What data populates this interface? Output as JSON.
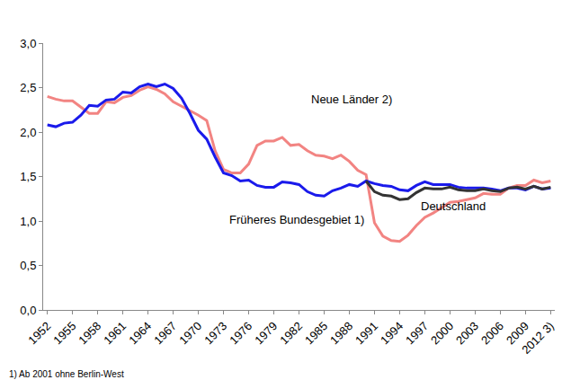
{
  "chart_data": {
    "type": "line",
    "categories": [
      "1952",
      null,
      null,
      "1955",
      null,
      null,
      "1958",
      null,
      null,
      "1961",
      null,
      null,
      "1964",
      null,
      null,
      "1967",
      null,
      null,
      "1970",
      null,
      null,
      "1973",
      null,
      null,
      "1976",
      null,
      null,
      "1979",
      null,
      null,
      "1982",
      null,
      null,
      "1985",
      null,
      null,
      "1988",
      null,
      null,
      "1991",
      null,
      null,
      "1994",
      null,
      null,
      "1997",
      null,
      null,
      "2000",
      null,
      null,
      "2003",
      null,
      null,
      "2006",
      null,
      null,
      "2009",
      null,
      null,
      "2012 3)"
    ],
    "series": [
      {
        "name": "Neue Länder 2)",
        "color": "#f28482",
        "values": [
          2.4,
          2.37,
          2.35,
          2.35,
          2.28,
          2.21,
          2.21,
          2.34,
          2.33,
          2.39,
          2.41,
          2.47,
          2.51,
          2.48,
          2.43,
          2.34,
          2.29,
          2.24,
          2.19,
          2.13,
          1.79,
          1.58,
          1.54,
          1.54,
          1.64,
          1.85,
          1.9,
          1.9,
          1.94,
          1.85,
          1.86,
          1.79,
          1.74,
          1.73,
          1.7,
          1.74,
          1.67,
          1.57,
          1.52,
          0.98,
          0.83,
          0.78,
          0.77,
          0.84,
          0.95,
          1.04,
          1.09,
          1.15,
          1.21,
          1.22,
          1.24,
          1.26,
          1.31,
          1.3,
          1.3,
          1.37,
          1.4,
          1.4,
          1.46,
          1.43,
          1.45
        ]
      },
      {
        "name": "Früheres Bundesgebiet 1)",
        "color": "#1a1aeb",
        "values": [
          2.08,
          2.06,
          2.1,
          2.11,
          2.19,
          2.3,
          2.29,
          2.36,
          2.37,
          2.45,
          2.44,
          2.51,
          2.54,
          2.51,
          2.54,
          2.49,
          2.38,
          2.21,
          2.02,
          1.92,
          1.72,
          1.54,
          1.51,
          1.45,
          1.46,
          1.4,
          1.38,
          1.38,
          1.44,
          1.43,
          1.41,
          1.33,
          1.29,
          1.28,
          1.34,
          1.37,
          1.41,
          1.39,
          1.45,
          1.42,
          1.4,
          1.39,
          1.35,
          1.34,
          1.4,
          1.44,
          1.41,
          1.41,
          1.41,
          1.38,
          1.37,
          1.37,
          1.37,
          1.36,
          1.34,
          1.37,
          1.37,
          1.35,
          1.39,
          1.36,
          1.37
        ]
      },
      {
        "name": "Deutschland",
        "color": "#333333",
        "values": [
          null,
          null,
          null,
          null,
          null,
          null,
          null,
          null,
          null,
          null,
          null,
          null,
          null,
          null,
          null,
          null,
          null,
          null,
          null,
          null,
          null,
          null,
          null,
          null,
          null,
          null,
          null,
          null,
          null,
          null,
          null,
          null,
          null,
          null,
          null,
          null,
          null,
          null,
          1.45,
          1.33,
          1.29,
          1.28,
          1.24,
          1.25,
          1.32,
          1.37,
          1.36,
          1.36,
          1.38,
          1.35,
          1.34,
          1.34,
          1.36,
          1.34,
          1.33,
          1.37,
          1.38,
          1.36,
          1.39,
          1.36,
          1.38
        ]
      }
    ],
    "ylim": [
      0,
      3
    ],
    "yticks": [
      {
        "value": 0,
        "label": "0,0"
      },
      {
        "value": 0.5,
        "label": "0,5"
      },
      {
        "value": 1,
        "label": "1,0"
      },
      {
        "value": 1.5,
        "label": "1,5"
      },
      {
        "value": 2,
        "label": "2,0"
      },
      {
        "value": 2.5,
        "label": "2,5"
      },
      {
        "value": 3,
        "label": "3,0"
      }
    ],
    "grid": false,
    "annotations": [
      "1) Ab 2001 ohne Berlin-West"
    ]
  }
}
